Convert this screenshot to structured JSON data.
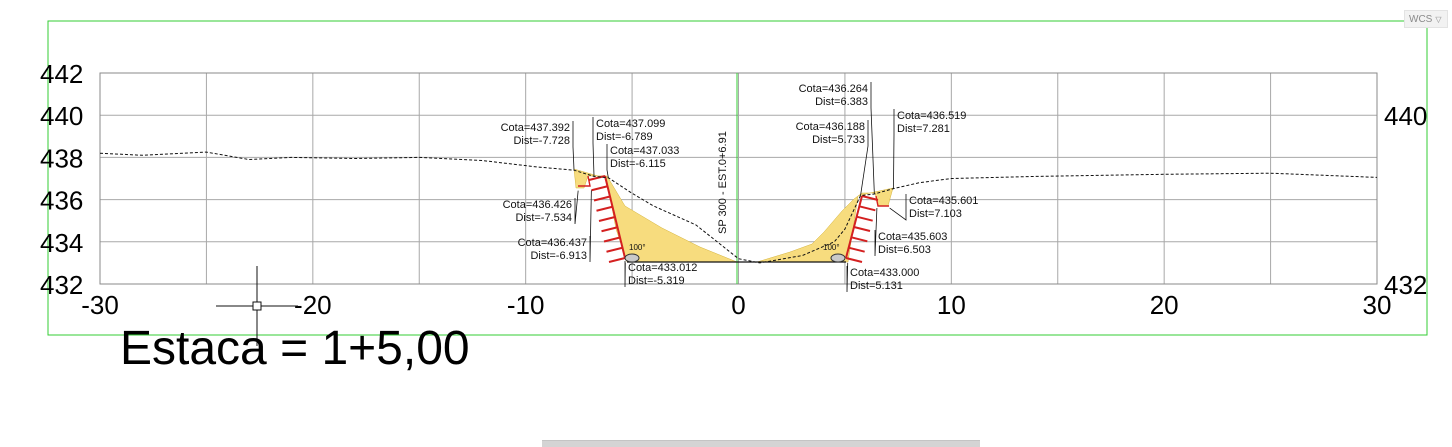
{
  "viewport": {
    "wcs_label": "WCS",
    "station_caption": "Estaca = 1+5,00",
    "center_line_label": "SP 300 - EST.0+6.91"
  },
  "chart_data": {
    "type": "cross-section",
    "x_range": [
      -30,
      30
    ],
    "y_range": [
      432,
      442
    ],
    "x_ticks": [
      "-30",
      "-20",
      "-10",
      "0",
      "10",
      "20",
      "30"
    ],
    "y_ticks_left": [
      "442",
      "440",
      "438",
      "436",
      "434",
      "432"
    ],
    "y_ticks_right": [
      "440",
      "432"
    ],
    "grid": true,
    "terrain": [
      [
        -30,
        438.2
      ],
      [
        -28,
        438.1
      ],
      [
        -25,
        438.25
      ],
      [
        -23,
        437.9
      ],
      [
        -21,
        438.0
      ],
      [
        -18,
        437.95
      ],
      [
        -15,
        438.0
      ],
      [
        -12,
        437.85
      ],
      [
        -9.5,
        437.55
      ],
      [
        -7.728,
        437.392
      ],
      [
        -6.789,
        437.099
      ],
      [
        -6.115,
        437.033
      ],
      [
        -5,
        436.3
      ],
      [
        -4,
        435.7
      ],
      [
        -2,
        434.8
      ],
      [
        0,
        433.2
      ],
      [
        1,
        433.0
      ],
      [
        3,
        433.35
      ],
      [
        4.5,
        434.0
      ],
      [
        5.0,
        434.6
      ],
      [
        5.733,
        436.188
      ],
      [
        6.383,
        436.264
      ],
      [
        7.281,
        436.519
      ],
      [
        8.5,
        436.8
      ],
      [
        10,
        437.0
      ],
      [
        14,
        437.1
      ],
      [
        20,
        437.2
      ],
      [
        25,
        437.25
      ],
      [
        30,
        437.05
      ]
    ],
    "annotations": [
      {
        "cota": "Cota=437.392",
        "dist": "Dist=-7.728",
        "side": "left",
        "x": -7.728,
        "y": 437.392
      },
      {
        "cota": "Cota=437.099",
        "dist": "Dist=-6.789",
        "side": "right",
        "x": -6.789,
        "y": 437.099
      },
      {
        "cota": "Cota=437.033",
        "dist": "Dist=-6.115",
        "side": "right",
        "x": -6.115,
        "y": 437.033
      },
      {
        "cota": "Cota=436.426",
        "dist": "Dist=-7.534",
        "side": "left",
        "x": -7.534,
        "y": 436.426
      },
      {
        "cota": "Cota=436.437",
        "dist": "Dist=-6.913",
        "side": "left",
        "x": -6.913,
        "y": 436.437
      },
      {
        "cota": "Cota=433.012",
        "dist": "Dist=-5.319",
        "side": "right",
        "x": -5.319,
        "y": 433.012
      },
      {
        "cota": "Cota=436.264",
        "dist": "Dist=6.383",
        "side": "left",
        "x": 6.383,
        "y": 436.264
      },
      {
        "cota": "Cota=436.188",
        "dist": "Dist=5.733",
        "side": "left",
        "x": 5.733,
        "y": 436.188
      },
      {
        "cota": "Cota=436.519",
        "dist": "Dist=7.281",
        "side": "right",
        "x": 7.281,
        "y": 436.519
      },
      {
        "cota": "Cota=435.601",
        "dist": "Dist=7.103",
        "side": "right",
        "x": 7.103,
        "y": 435.601
      },
      {
        "cota": "Cota=435.603",
        "dist": "Dist=6.503",
        "side": "right",
        "x": 6.503,
        "y": 435.603
      },
      {
        "cota": "Cota=433.000",
        "dist": "Dist=5.131",
        "side": "right",
        "x": 5.131,
        "y": 433.0
      }
    ],
    "angle_labels": [
      "100°",
      "100°"
    ],
    "colors": {
      "frame": "#33cc33",
      "grid": "#a8a8a8",
      "fill": "#f7dc7e",
      "fill_stroke": "#d4b33a",
      "design": "#d42020",
      "terrain": "#111111"
    }
  }
}
